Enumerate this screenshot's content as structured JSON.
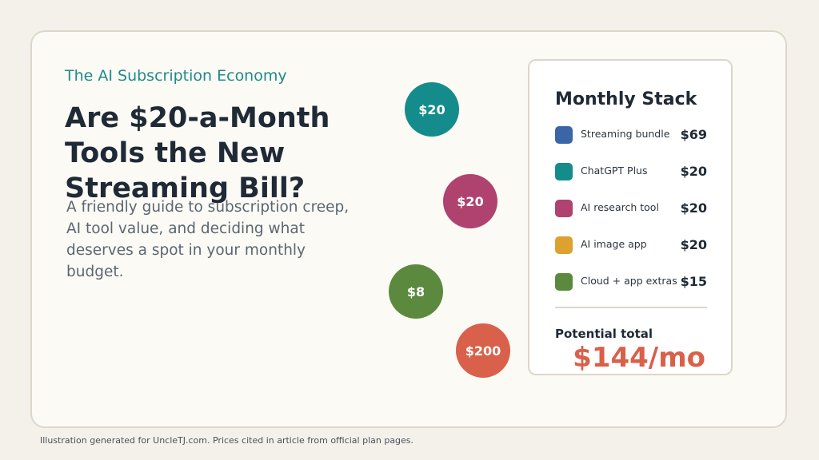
{
  "hero": {
    "eyebrow": "The AI Subscription Economy",
    "title": "Are $20-a-Month Tools the New Streaming Bill?",
    "subtitle": "A friendly guide to subscription creep, AI tool value, and deciding what deserves a spot in your monthly budget."
  },
  "bubbles": [
    "$20",
    "$20",
    "$8",
    "$200"
  ],
  "stack": {
    "title": "Monthly Stack",
    "items": [
      {
        "label": "Streaming bundle",
        "price": "$69",
        "color": "#3a66a8"
      },
      {
        "label": "ChatGPT Plus",
        "price": "$20",
        "color": "#158c8c"
      },
      {
        "label": "AI research tool",
        "price": "$20",
        "color": "#b0426f"
      },
      {
        "label": "AI image app",
        "price": "$20",
        "color": "#dca12e"
      },
      {
        "label": "Cloud + app extras",
        "price": "$15",
        "color": "#5b8a3e"
      }
    ],
    "total_label": "Potential total",
    "total_value": "$144/mo"
  },
  "footer": "Illustration generated for UncleTJ.com. Prices cited in article from official plan pages.",
  "colors": {
    "accent_teal": "#158c8c",
    "accent_red": "#d9604a",
    "background": "#f4f1ea"
  }
}
